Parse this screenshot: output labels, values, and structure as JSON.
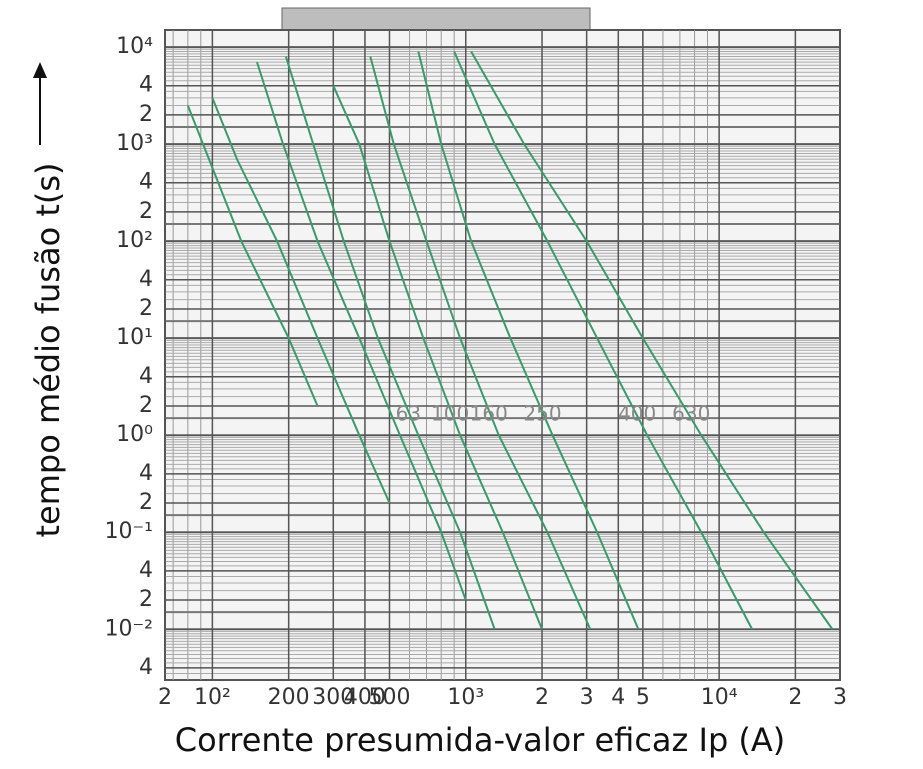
{
  "chart_data": {
    "type": "line",
    "xlabel": "Corrente presumida-valor eficaz Ip (A)",
    "ylabel": "tempo médio fusão t(s)",
    "log_x": true,
    "log_y": true,
    "grid": true,
    "color": "#3a9a6a",
    "xlim": [
      65,
      30000
    ],
    "ylim": [
      0.003,
      15000
    ],
    "xticks": [
      {
        "value": 65,
        "label": "2"
      },
      {
        "value": 100,
        "label": "10²"
      },
      200,
      300,
      400,
      500,
      {
        "value": 1000,
        "label": "10³"
      },
      {
        "value": 2000,
        "label": "2"
      },
      {
        "value": 3000,
        "label": "3"
      },
      {
        "value": 4000,
        "label": "4"
      },
      {
        "value": 5000,
        "label": "5"
      },
      {
        "value": 10000,
        "label": "10⁴"
      },
      {
        "value": 20000,
        "label": "2"
      },
      {
        "value": 30000,
        "label": "3"
      }
    ],
    "yticks": [
      {
        "value": 10000,
        "label": "10⁴"
      },
      {
        "value": 4000,
        "label": "4"
      },
      {
        "value": 2000,
        "label": "2"
      },
      {
        "value": 1000,
        "label": "10³"
      },
      {
        "value": 400,
        "label": "4"
      },
      {
        "value": 200,
        "label": "2"
      },
      {
        "value": 100,
        "label": "10²"
      },
      {
        "value": 40,
        "label": "4"
      },
      {
        "value": 20,
        "label": "2"
      },
      {
        "value": 10,
        "label": "10¹"
      },
      4,
      2,
      {
        "value": 1,
        "label": "10⁰"
      },
      {
        "value": 0.4,
        "label": "4"
      },
      {
        "value": 0.2,
        "label": "2"
      },
      {
        "value": 0.1,
        "label": "10⁻¹"
      },
      {
        "value": 0.04,
        "label": "4"
      },
      {
        "value": 0.02,
        "label": "2"
      },
      {
        "value": 0.01,
        "label": "10⁻²"
      },
      {
        "value": 0.004,
        "label": "4"
      }
    ],
    "series": [
      {
        "x": [
          80,
          95,
          130,
          200,
          260
        ],
        "values": [
          2500,
          800,
          100,
          10,
          2
        ]
      },
      {
        "x": [
          100,
          125,
          180,
          260,
          380,
          500
        ],
        "values": [
          3000,
          700,
          100,
          10,
          1,
          0.2
        ]
      },
      {
        "x": [
          150,
          190,
          260,
          380,
          550,
          800,
          1000
        ],
        "values": [
          7000,
          1000,
          100,
          10,
          1,
          0.1,
          0.02
        ]
      },
      {
        "name": "63",
        "x": [
          195,
          250,
          330,
          450,
          650,
          950,
          1300
        ],
        "values": [
          8000,
          1000,
          100,
          10,
          1,
          0.1,
          0.01
        ]
      },
      {
        "name": "100",
        "x": [
          300,
          380,
          500,
          680,
          950,
          1400,
          2000
        ],
        "values": [
          4000,
          1000,
          100,
          10,
          1,
          0.1,
          0.01
        ]
      },
      {
        "name": "160",
        "x": [
          420,
          520,
          700,
          950,
          1350,
          2100,
          3100
        ],
        "values": [
          8000,
          1000,
          100,
          10,
          1,
          0.1,
          0.01
        ]
      },
      {
        "name": "250",
        "x": [
          650,
          800,
          1050,
          1500,
          2200,
          3300,
          4800
        ],
        "values": [
          9000,
          1000,
          100,
          10,
          1,
          0.1,
          0.01
        ]
      },
      {
        "name": "400",
        "x": [
          900,
          1300,
          2100,
          3300,
          5200,
          8500,
          13500
        ],
        "values": [
          9000,
          1000,
          100,
          10,
          1,
          0.1,
          0.01
        ]
      },
      {
        "name": "630",
        "x": [
          1050,
          1700,
          3000,
          5000,
          8500,
          15000,
          28000
        ],
        "values": [
          9000,
          1000,
          100,
          10,
          1,
          0.1,
          0.01
        ]
      }
    ]
  }
}
